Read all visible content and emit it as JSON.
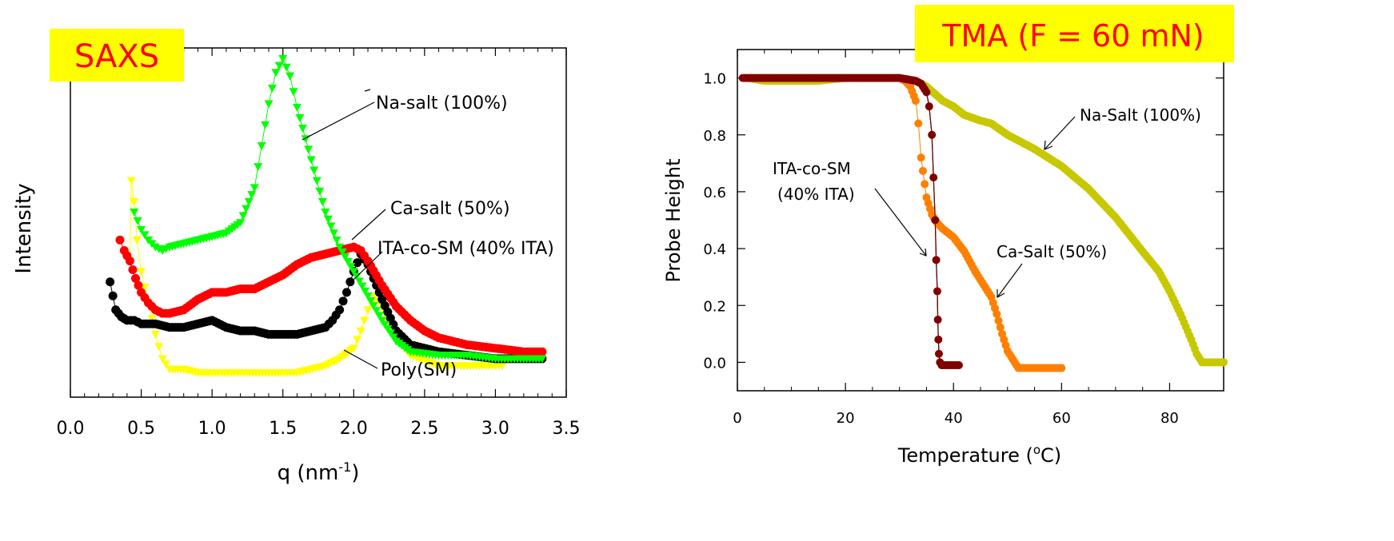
{
  "chart_data": [
    {
      "type": "scatter",
      "title": "SAXS",
      "xlabel": "q (nm",
      "xlabel_sup": "-1",
      "xlabel_end": ")",
      "ylabel": "Intensity",
      "xlim": [
        0,
        3.5
      ],
      "ylim": [
        0,
        1
      ],
      "y_tick_labels": false,
      "grid": false,
      "xticks": [
        "0.0",
        "0.5",
        "1.0",
        "1.5",
        "2.0",
        "2.5",
        "3.0",
        "3.5"
      ],
      "xtick_values": [
        0,
        0.5,
        1.0,
        1.5,
        2.0,
        2.5,
        3.0,
        3.5
      ],
      "series": [
        {
          "name": "Poly(SM)",
          "color": "#ffff00",
          "marker": "triangle-down",
          "x": [
            0.42,
            0.43,
            0.45,
            0.47,
            0.5,
            0.55,
            0.6,
            0.65,
            0.7,
            0.8,
            0.9,
            1.0,
            1.2,
            1.4,
            1.6,
            1.8,
            1.9,
            2.0,
            2.05,
            2.1,
            2.15,
            2.2,
            2.3,
            2.4,
            2.6,
            2.8,
            3.0,
            3.05
          ],
          "y": [
            0.39,
            0.62,
            0.56,
            0.45,
            0.36,
            0.27,
            0.18,
            0.11,
            0.08,
            0.08,
            0.07,
            0.07,
            0.07,
            0.07,
            0.07,
            0.09,
            0.11,
            0.14,
            0.19,
            0.25,
            0.29,
            0.26,
            0.17,
            0.12,
            0.09,
            0.09,
            0.09,
            0.09
          ]
        },
        {
          "name": "ITA-co-SM (40% ITA)",
          "color": "#000000",
          "marker": "circle",
          "x": [
            0.28,
            0.32,
            0.36,
            0.4,
            0.45,
            0.5,
            0.6,
            0.7,
            0.8,
            0.9,
            1.0,
            1.1,
            1.2,
            1.3,
            1.4,
            1.5,
            1.6,
            1.7,
            1.8,
            1.85,
            1.9,
            1.95,
            2.0,
            2.05,
            2.1,
            2.2,
            2.3,
            2.4,
            2.6,
            2.8,
            3.0,
            3.2,
            3.33
          ],
          "y": [
            0.33,
            0.25,
            0.23,
            0.22,
            0.22,
            0.21,
            0.21,
            0.2,
            0.2,
            0.21,
            0.22,
            0.2,
            0.19,
            0.19,
            0.18,
            0.18,
            0.18,
            0.19,
            0.2,
            0.22,
            0.25,
            0.3,
            0.36,
            0.41,
            0.38,
            0.28,
            0.19,
            0.15,
            0.13,
            0.12,
            0.11,
            0.11,
            0.11
          ]
        },
        {
          "name": "Ca-salt (50%)",
          "color": "#ff0000",
          "marker": "circle",
          "x": [
            0.35,
            0.38,
            0.42,
            0.46,
            0.5,
            0.55,
            0.6,
            0.65,
            0.7,
            0.8,
            0.9,
            1.0,
            1.1,
            1.2,
            1.3,
            1.4,
            1.5,
            1.6,
            1.7,
            1.8,
            1.9,
            2.0,
            2.05,
            2.1,
            2.2,
            2.3,
            2.4,
            2.5,
            2.6,
            2.8,
            3.0,
            3.2,
            3.33
          ],
          "y": [
            0.45,
            0.42,
            0.39,
            0.34,
            0.3,
            0.27,
            0.25,
            0.24,
            0.24,
            0.25,
            0.28,
            0.3,
            0.3,
            0.31,
            0.31,
            0.33,
            0.35,
            0.38,
            0.4,
            0.41,
            0.42,
            0.43,
            0.42,
            0.39,
            0.32,
            0.26,
            0.22,
            0.19,
            0.17,
            0.15,
            0.14,
            0.13,
            0.13
          ]
        },
        {
          "name": "Na-salt (100%)",
          "color": "#00ff00",
          "marker": "triangle-down",
          "x": [
            0.45,
            0.5,
            0.55,
            0.6,
            0.65,
            0.7,
            0.8,
            0.9,
            1.0,
            1.1,
            1.2,
            1.3,
            1.35,
            1.4,
            1.45,
            1.5,
            1.55,
            1.6,
            1.7,
            1.8,
            1.9,
            2.0,
            2.1,
            2.2,
            2.3,
            2.4,
            2.6,
            2.8,
            3.0,
            3.2,
            3.33
          ],
          "y": [
            0.53,
            0.48,
            0.45,
            0.43,
            0.42,
            0.43,
            0.44,
            0.45,
            0.46,
            0.47,
            0.5,
            0.6,
            0.72,
            0.84,
            0.93,
            0.97,
            0.92,
            0.83,
            0.68,
            0.53,
            0.43,
            0.36,
            0.29,
            0.22,
            0.16,
            0.13,
            0.12,
            0.12,
            0.11,
            0.11,
            0.11
          ]
        }
      ],
      "annotations": [
        "Na-salt (100%)",
        "Ca-salt (50%)",
        "ITA-co-SM (40% ITA)",
        "Poly(SM)"
      ]
    },
    {
      "type": "scatter",
      "title": "TMA (F = 60 mN)",
      "xlabel": "Temperature (",
      "xlabel_sup": "o",
      "xlabel_end": "C)",
      "ylabel": "Probe Height",
      "xlim": [
        0,
        90
      ],
      "ylim": [
        -0.1,
        1.1
      ],
      "grid": false,
      "xticks": [
        "0",
        "20",
        "40",
        "60",
        "80"
      ],
      "xtick_values": [
        0,
        20,
        40,
        60,
        80
      ],
      "yticks": [
        "0.0",
        "0.2",
        "0.4",
        "0.6",
        "0.8",
        "1.0"
      ],
      "ytick_values": [
        0.0,
        0.2,
        0.4,
        0.6,
        0.8,
        1.0
      ],
      "series": [
        {
          "name": "Na-Salt (100%)",
          "color": "#c8c800",
          "marker": "circle",
          "x": [
            2,
            5,
            10,
            15,
            20,
            25,
            30,
            33,
            35,
            38,
            40,
            42,
            45,
            47,
            50,
            55,
            60,
            65,
            70,
            75,
            78,
            80,
            82,
            84,
            85,
            86,
            87,
            88,
            90
          ],
          "y": [
            1.0,
            0.99,
            0.99,
            0.99,
            1.0,
            1.0,
            1.0,
            0.99,
            0.97,
            0.92,
            0.9,
            0.87,
            0.85,
            0.84,
            0.8,
            0.75,
            0.69,
            0.61,
            0.51,
            0.39,
            0.32,
            0.25,
            0.17,
            0.08,
            0.03,
            0.0,
            0.0,
            0.0,
            0.0
          ]
        },
        {
          "name": "Ca-Salt (50%)",
          "color": "#ff8000",
          "marker": "circle",
          "x": [
            1,
            5,
            10,
            15,
            20,
            25,
            30,
            31,
            32,
            33,
            33.5,
            34,
            35,
            36,
            37,
            38,
            40,
            42,
            44,
            46,
            47,
            48,
            49,
            50,
            51,
            52,
            54,
            56,
            58,
            60
          ],
          "y": [
            1.0,
            1.0,
            1.0,
            1.0,
            1.0,
            1.0,
            1.0,
            0.99,
            0.97,
            0.92,
            0.84,
            0.72,
            0.58,
            0.52,
            0.49,
            0.47,
            0.44,
            0.39,
            0.32,
            0.26,
            0.23,
            0.17,
            0.1,
            0.04,
            0.01,
            -0.02,
            -0.02,
            -0.02,
            -0.02,
            -0.02
          ]
        },
        {
          "name": "ITA-co-SM (40% ITA)",
          "color": "#800000",
          "marker": "circle",
          "x": [
            1,
            5,
            10,
            15,
            20,
            25,
            30,
            33,
            34,
            35,
            35.5,
            36,
            36.3,
            36.6,
            36.8,
            37,
            37.1,
            37.2,
            37.3,
            37.5,
            37.8,
            38,
            39,
            40,
            41
          ],
          "y": [
            1.0,
            1.0,
            1.0,
            1.0,
            1.0,
            1.0,
            1.0,
            0.99,
            0.98,
            0.95,
            0.9,
            0.8,
            0.65,
            0.5,
            0.36,
            0.25,
            0.15,
            0.08,
            0.03,
            0.0,
            -0.01,
            -0.01,
            -0.01,
            -0.01,
            -0.01
          ]
        }
      ],
      "annotations": [
        "Na-Salt (100%)",
        "ITA-co-SM",
        "(40% ITA)",
        "Ca-Salt (50%)"
      ]
    }
  ]
}
